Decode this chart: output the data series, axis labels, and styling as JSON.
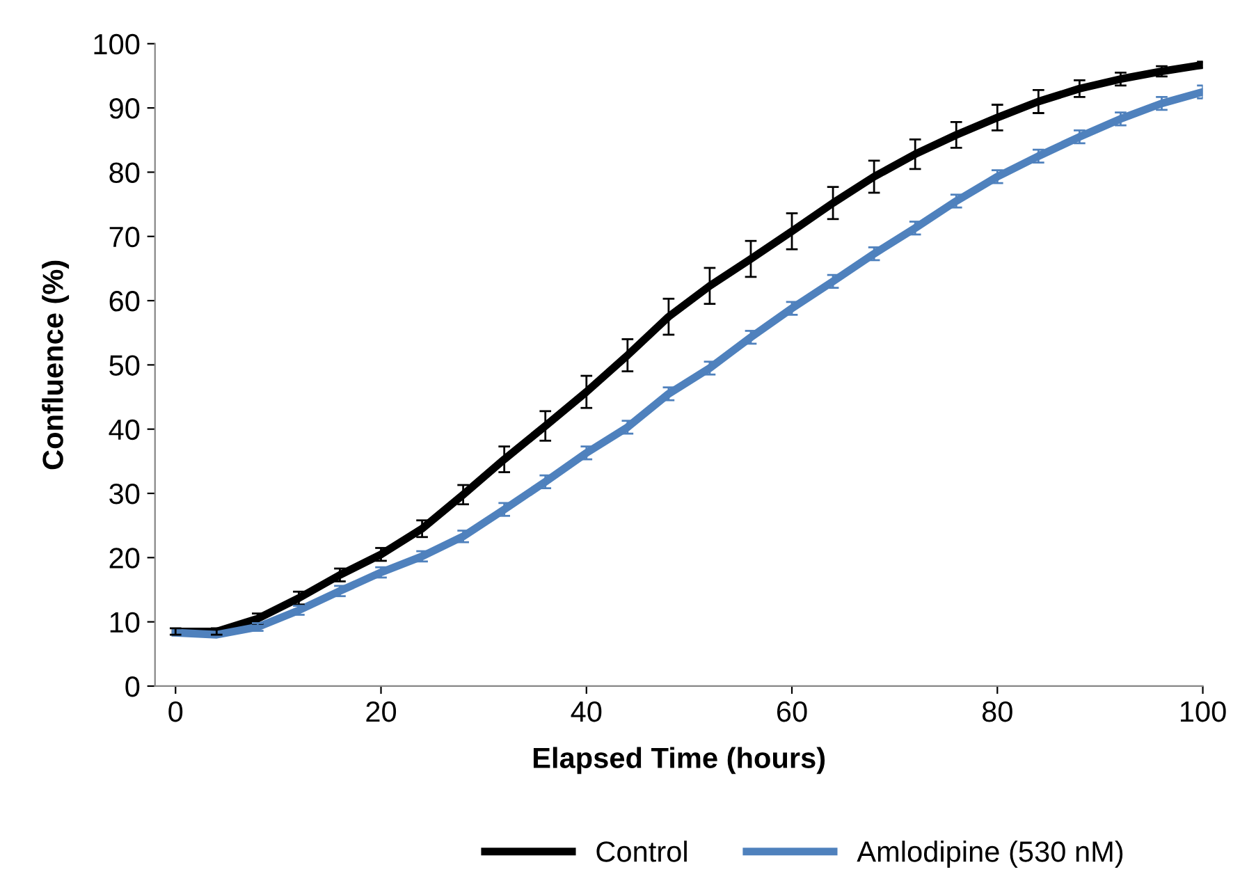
{
  "chart_data": {
    "type": "line",
    "xlabel": "Elapsed Time (hours)",
    "ylabel": "Confluence (%)",
    "x": [
      0,
      4,
      8,
      12,
      16,
      20,
      24,
      28,
      32,
      36,
      40,
      44,
      48,
      52,
      56,
      60,
      64,
      68,
      72,
      76,
      80,
      84,
      88,
      92,
      96,
      100
    ],
    "series": [
      {
        "name": "Control",
        "color": "#000000",
        "values": [
          8.5,
          8.5,
          10.5,
          13.7,
          17.3,
          20.5,
          24.5,
          29.8,
          35.3,
          40.5,
          45.8,
          51.5,
          57.5,
          62.3,
          66.5,
          70.8,
          75.2,
          79.3,
          82.8,
          85.8,
          88.5,
          91,
          93,
          94.5,
          95.7,
          96.7
        ],
        "errors": [
          0.5,
          0.5,
          0.8,
          1,
          1,
          1,
          1.3,
          1.5,
          2,
          2.3,
          2.5,
          2.5,
          2.8,
          2.8,
          2.8,
          2.8,
          2.5,
          2.5,
          2.3,
          2,
          2,
          1.8,
          1.3,
          1,
          0.8,
          0.5
        ]
      },
      {
        "name": "Amlodipine (530 nM)",
        "color": "#4f81bd",
        "values": [
          8.3,
          8,
          9.2,
          11.8,
          14.8,
          17.7,
          20.2,
          23.3,
          27.5,
          31.8,
          36.3,
          40.3,
          45.5,
          49.5,
          54.3,
          58.8,
          63,
          67.3,
          71.3,
          75.5,
          79.3,
          82.5,
          85.5,
          88.3,
          90.7,
          92.5
        ],
        "errors": [
          null,
          null,
          0.6,
          0.7,
          0.8,
          0.8,
          0.8,
          0.9,
          1,
          1,
          1,
          1,
          1,
          1,
          1,
          1,
          1,
          1,
          1,
          1,
          1,
          1,
          1,
          1,
          1,
          1
        ]
      }
    ],
    "xlim": [
      -2,
      100
    ],
    "xticks": [
      0,
      20,
      40,
      60,
      80,
      100
    ],
    "ylim": [
      0,
      100
    ],
    "yticks": [
      0,
      10,
      20,
      30,
      40,
      50,
      60,
      70,
      80,
      90,
      100
    ],
    "grid": false,
    "legend": "bottom",
    "marker": "none",
    "line_style": "solid"
  }
}
